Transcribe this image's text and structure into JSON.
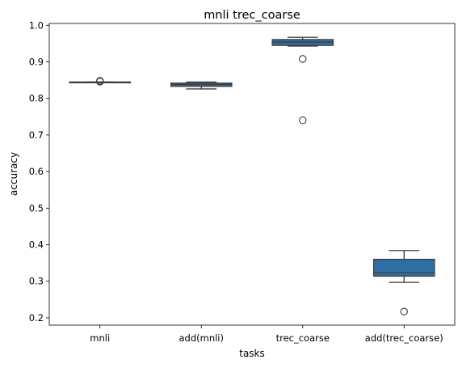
{
  "chart_data": {
    "type": "box",
    "title": "mnli trec_coarse",
    "xlabel": "tasks",
    "ylabel": "accuracy",
    "ylim": [
      0.18,
      1.005
    ],
    "yticks": [
      0.2,
      0.3,
      0.4,
      0.5,
      0.6,
      0.7,
      0.8,
      0.9,
      1.0
    ],
    "ytick_labels": [
      "0.2",
      "0.3",
      "0.4",
      "0.5",
      "0.6",
      "0.7",
      "0.8",
      "0.9",
      "1.0"
    ],
    "grid": false,
    "box_color": "#2f6fa5",
    "categories": [
      "mnli",
      "add(mnli)",
      "trec_coarse",
      "add(trec_coarse)"
    ],
    "boxes": [
      {
        "whisker_low": 0.843,
        "q1": 0.843,
        "median": 0.844,
        "q3": 0.845,
        "whisker_high": 0.845,
        "outliers": [
          0.848,
          0.846
        ]
      },
      {
        "whisker_low": 0.826,
        "q1": 0.833,
        "median": 0.838,
        "q3": 0.842,
        "whisker_high": 0.845,
        "outliers": []
      },
      {
        "whisker_low": 0.943,
        "q1": 0.945,
        "median": 0.954,
        "q3": 0.961,
        "whisker_high": 0.967,
        "outliers": [
          0.908,
          0.74
        ]
      },
      {
        "whisker_low": 0.297,
        "q1": 0.314,
        "median": 0.323,
        "q3": 0.36,
        "whisker_high": 0.384,
        "outliers": [
          0.217
        ]
      }
    ]
  }
}
